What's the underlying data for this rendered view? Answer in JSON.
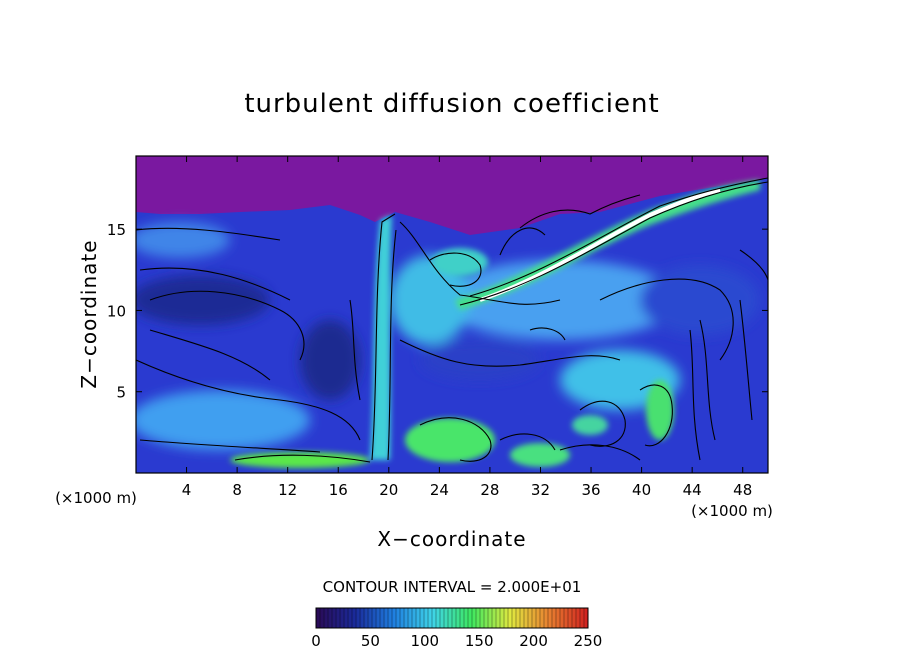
{
  "chart_data": {
    "type": "heatmap",
    "title": "turbulent diffusion coefficient",
    "xlabel": "X−coordinate",
    "ylabel": "Z−coordinate",
    "x_unit_left": "(×1000 m)",
    "x_unit_right": "(×1000 m)",
    "xlim": [
      0,
      50
    ],
    "ylim": [
      0,
      19.5
    ],
    "x_ticks": [
      {
        "value": 4,
        "label": "4"
      },
      {
        "value": 8,
        "label": "8"
      },
      {
        "value": 12,
        "label": "12"
      },
      {
        "value": 16,
        "label": "16"
      },
      {
        "value": 20,
        "label": "20"
      },
      {
        "value": 24,
        "label": "24"
      },
      {
        "value": 28,
        "label": "28"
      },
      {
        "value": 32,
        "label": "32"
      },
      {
        "value": 36,
        "label": "36"
      },
      {
        "value": 40,
        "label": "40"
      },
      {
        "value": 44,
        "label": "44"
      },
      {
        "value": 48,
        "label": "48"
      }
    ],
    "y_ticks": [
      {
        "value": 5,
        "label": "5"
      },
      {
        "value": 10,
        "label": "10"
      },
      {
        "value": 15,
        "label": "15"
      }
    ],
    "contour_interval_text": "CONTOUR INTERVAL = 2.000E+01",
    "colorbar": {
      "min": 0,
      "max": 250,
      "ticks": [
        {
          "value": 0,
          "label": "0"
        },
        {
          "value": 50,
          "label": "50"
        },
        {
          "value": 100,
          "label": "100"
        },
        {
          "value": 150,
          "label": "150"
        },
        {
          "value": 200,
          "label": "200"
        },
        {
          "value": 250,
          "label": "250"
        }
      ],
      "colors": [
        "#2a0a55",
        "#1a2a9a",
        "#1f7fe0",
        "#3fd4e8",
        "#3ee860",
        "#e0e840",
        "#e88030",
        "#d02020"
      ]
    },
    "background_color": "#7a18a0"
  }
}
